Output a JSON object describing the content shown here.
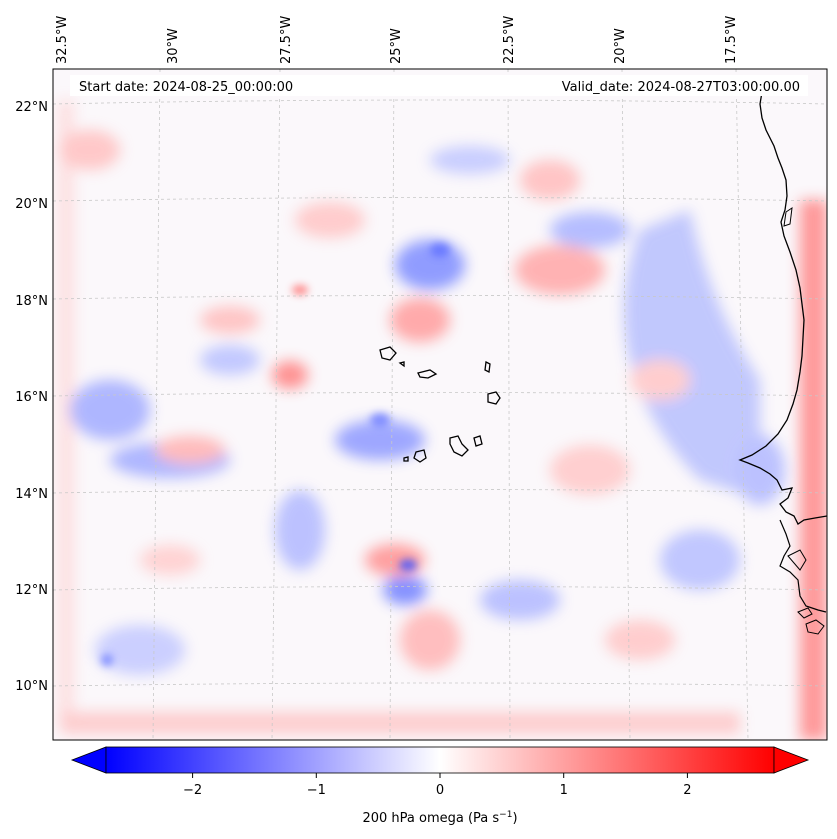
{
  "header": {
    "start_date": "Start date: 2024-08-25_00:00:00",
    "valid_date": "Valid_date: 2024-08-27T03:00:00.00"
  },
  "axes": {
    "lon_labels": [
      "32.5°W",
      "30°W",
      "27.5°W",
      "25°W",
      "22.5°W",
      "20°W",
      "17.5°W"
    ],
    "lat_labels": [
      "22°N",
      "20°N",
      "18°N",
      "16°N",
      "14°N",
      "12°N",
      "10°N"
    ]
  },
  "colorbar": {
    "label_main": "200 hPa omega (Pa s",
    "label_exp": "−1",
    "label_end": ")",
    "ticks": [
      "−2",
      "−1",
      "0",
      "1",
      "2"
    ],
    "min": -2.7,
    "max": 2.7,
    "tick_values": [
      -2,
      -1,
      0,
      1,
      2
    ],
    "color_low": "#0000ff",
    "color_mid": "#ffffff",
    "color_high": "#ff0000"
  },
  "map": {
    "field": "200 hPa omega",
    "coastline_color": "#000000",
    "gridline_color": "#c8c8c8"
  }
}
